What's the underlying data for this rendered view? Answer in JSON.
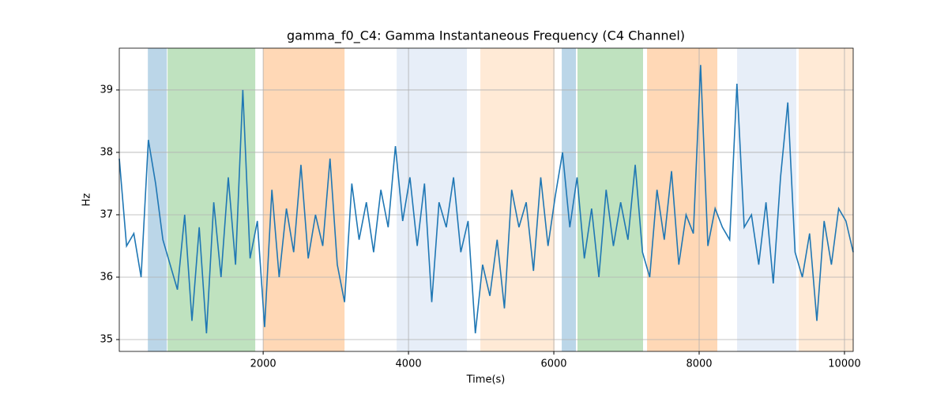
{
  "chart_data": {
    "type": "line",
    "title": "gamma_f0_C4: Gamma Instantaneous Frequency (C4 Channel)",
    "xlabel": "Time(s)",
    "ylabel": "Hz",
    "x": [
      20,
      120,
      220,
      320,
      420,
      520,
      620,
      720,
      820,
      920,
      1020,
      1120,
      1220,
      1320,
      1420,
      1520,
      1620,
      1720,
      1820,
      1920,
      2020,
      2120,
      2220,
      2320,
      2420,
      2520,
      2620,
      2720,
      2820,
      2920,
      3020,
      3120,
      3220,
      3320,
      3420,
      3520,
      3620,
      3720,
      3820,
      3920,
      4020,
      4120,
      4220,
      4320,
      4420,
      4520,
      4620,
      4720,
      4820,
      4920,
      5020,
      5120,
      5220,
      5320,
      5420,
      5520,
      5620,
      5720,
      5820,
      5920,
      6020,
      6120,
      6220,
      6320,
      6420,
      6520,
      6620,
      6720,
      6820,
      6920,
      7020,
      7120,
      7220,
      7320,
      7420,
      7520,
      7620,
      7720,
      7820,
      7920,
      8020,
      8120,
      8220,
      8320,
      8420,
      8520,
      8620,
      8720,
      8820,
      8920,
      9020,
      9120,
      9220,
      9320,
      9420,
      9520,
      9620,
      9720,
      9820,
      9920,
      10020,
      10120
    ],
    "series": [
      {
        "name": "gamma_f0_C4",
        "color": "#1f77b4",
        "values": [
          37.9,
          36.5,
          36.7,
          36.0,
          38.2,
          37.5,
          36.6,
          36.2,
          35.8,
          37.0,
          35.3,
          36.8,
          35.1,
          37.2,
          36.0,
          37.6,
          36.2,
          39.0,
          36.3,
          36.9,
          35.2,
          37.4,
          36.0,
          37.1,
          36.4,
          37.8,
          36.3,
          37.0,
          36.5,
          37.9,
          36.2,
          35.6,
          37.5,
          36.6,
          37.2,
          36.4,
          37.4,
          36.8,
          38.1,
          36.9,
          37.6,
          36.5,
          37.5,
          35.6,
          37.2,
          36.8,
          37.6,
          36.4,
          36.9,
          35.1,
          36.2,
          35.7,
          36.6,
          35.5,
          37.4,
          36.8,
          37.2,
          36.1,
          37.6,
          36.5,
          37.3,
          38.0,
          36.8,
          37.6,
          36.3,
          37.1,
          36.0,
          37.4,
          36.5,
          37.2,
          36.6,
          37.8,
          36.4,
          36.0,
          37.4,
          36.6,
          37.7,
          36.2,
          37.0,
          36.7,
          39.4,
          36.5,
          37.1,
          36.8,
          36.6,
          39.1,
          36.8,
          37.0,
          36.2,
          37.2,
          35.9,
          37.6,
          38.8,
          36.4,
          36.0,
          36.7,
          35.3,
          36.9,
          36.2,
          37.1,
          36.9,
          36.4
        ]
      }
    ],
    "spans": [
      {
        "start": 413,
        "end": 674,
        "color": "#1f77b4",
        "alpha": 0.3
      },
      {
        "start": 685,
        "end": 1891,
        "color": "#2ca02c",
        "alpha": 0.3
      },
      {
        "start": 2000,
        "end": 3120,
        "color": "#ff7f0e",
        "alpha": 0.3
      },
      {
        "start": 3837,
        "end": 4804,
        "color": "#aec7e8",
        "alpha": 0.3
      },
      {
        "start": 4989,
        "end": 6011,
        "color": "#ffbb78",
        "alpha": 0.3
      },
      {
        "start": 6109,
        "end": 6304,
        "color": "#1f77b4",
        "alpha": 0.3
      },
      {
        "start": 6326,
        "end": 7228,
        "color": "#2ca02c",
        "alpha": 0.3
      },
      {
        "start": 7283,
        "end": 8250,
        "color": "#ff7f0e",
        "alpha": 0.3
      },
      {
        "start": 8522,
        "end": 9337,
        "color": "#aec7e8",
        "alpha": 0.3
      },
      {
        "start": 9370,
        "end": 10120,
        "color": "#ffbb78",
        "alpha": 0.3
      }
    ],
    "xlim": [
      20,
      10120
    ],
    "ylim": [
      34.81,
      39.67
    ],
    "xticks": [
      2000,
      4000,
      6000,
      8000,
      10000
    ],
    "yticks": [
      35,
      36,
      37,
      38,
      39
    ],
    "grid": true
  }
}
